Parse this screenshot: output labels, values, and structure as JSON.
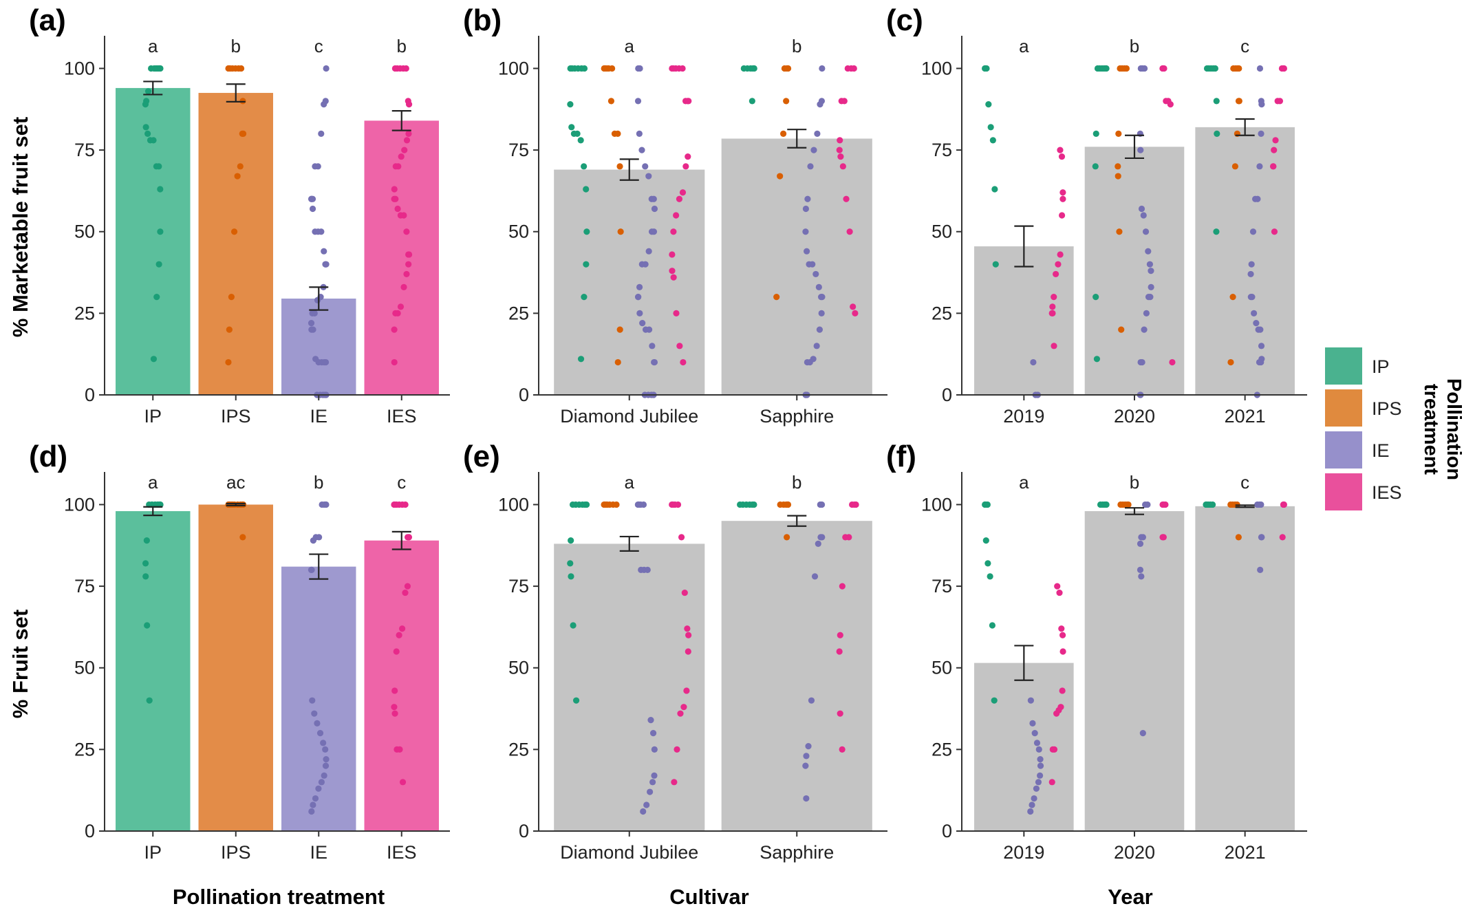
{
  "chart_data": [
    {
      "panel": "(a)",
      "type": "bar",
      "ylabel": "% Marketable fruit set",
      "xlabel": "",
      "ylim": [
        0,
        110
      ],
      "yticks": [
        0,
        25,
        50,
        75,
        100
      ],
      "categories": [
        "IP",
        "IPS",
        "IE",
        "IES"
      ],
      "values": [
        94,
        92.5,
        29.5,
        84
      ],
      "errors": [
        2,
        2.7,
        3.5,
        3
      ],
      "letters": [
        "a",
        "b",
        "c",
        "b"
      ],
      "bar_colors": [
        "#1b9e77",
        "#d95f02",
        "#7570b3",
        "#e7298a"
      ],
      "points": [
        [
          100,
          100,
          100,
          100,
          100,
          100,
          100,
          100,
          93,
          90,
          89,
          82,
          80,
          78,
          78,
          70,
          70,
          63,
          50,
          40,
          30,
          11
        ],
        [
          100,
          100,
          100,
          100,
          100,
          100,
          100,
          100,
          90,
          80,
          80,
          70,
          67,
          50,
          30,
          20,
          10
        ],
        [
          100,
          90,
          89,
          80,
          70,
          70,
          60,
          60,
          60,
          57,
          50,
          50,
          50,
          44,
          40,
          40,
          40,
          33,
          30,
          29,
          25,
          25,
          22,
          20,
          20,
          11,
          10,
          10,
          10,
          10,
          0,
          0,
          0,
          0,
          0
        ],
        [
          100,
          100,
          100,
          100,
          100,
          90,
          89,
          80,
          78,
          75,
          73,
          70,
          70,
          63,
          60,
          60,
          57,
          55,
          55,
          50,
          43,
          43,
          40,
          37,
          33,
          27,
          25,
          25,
          20,
          10
        ]
      ]
    },
    {
      "panel": "(b)",
      "type": "bar",
      "xlabel": "",
      "ylim": [
        0,
        110
      ],
      "yticks": [
        0,
        25,
        50,
        75,
        100
      ],
      "categories": [
        "Diamond Jubilee",
        "Sapphire"
      ],
      "values": [
        69,
        78.5
      ],
      "errors": [
        3.2,
        2.8
      ],
      "letters": [
        "a",
        "b"
      ],
      "group_colors": [
        "#1b9e77",
        "#d95f02",
        "#7570b3",
        "#e7298a"
      ],
      "points": [
        [
          [
            100,
            100,
            100,
            100,
            100,
            100,
            89,
            82,
            80,
            80,
            78,
            70,
            63,
            50,
            40,
            30,
            11
          ],
          [
            100,
            100,
            100,
            100,
            100,
            100,
            100,
            90,
            80,
            80,
            70,
            50,
            20,
            10
          ],
          [
            100,
            100,
            90,
            80,
            75,
            70,
            67,
            60,
            60,
            57,
            50,
            50,
            44,
            40,
            40,
            33,
            30,
            30,
            25,
            22,
            20,
            20,
            15,
            10,
            10,
            0,
            0,
            0,
            0
          ],
          [
            100,
            100,
            100,
            100,
            100,
            90,
            90,
            90,
            73,
            70,
            62,
            60,
            55,
            50,
            43,
            38,
            36,
            25,
            15,
            10
          ]
        ],
        [
          [
            100,
            100,
            100,
            100,
            100,
            100,
            90
          ],
          [
            100,
            100,
            100,
            100,
            90,
            80,
            67,
            30
          ],
          [
            100,
            90,
            89,
            80,
            75,
            70,
            60,
            57,
            50,
            44,
            40,
            40,
            37,
            33,
            30,
            30,
            25,
            20,
            15,
            11,
            10,
            10,
            0,
            0,
            0
          ],
          [
            100,
            100,
            100,
            90,
            90,
            78,
            75,
            73,
            70,
            60,
            50,
            27,
            25
          ]
        ]
      ]
    },
    {
      "panel": "(c)",
      "type": "bar",
      "xlabel": "",
      "ylim": [
        0,
        110
      ],
      "yticks": [
        0,
        25,
        50,
        75,
        100
      ],
      "categories": [
        "2019",
        "2020",
        "2021"
      ],
      "values": [
        45.5,
        76,
        82
      ],
      "errors": [
        6.2,
        3.5,
        2.5
      ],
      "letters": [
        "a",
        "b",
        "c"
      ],
      "group_colors": [
        "#1b9e77",
        "#d95f02",
        "#7570b3",
        "#e7298a"
      ],
      "points": [
        [
          [
            100,
            100,
            100,
            100,
            89,
            82,
            78,
            63,
            40
          ],
          [],
          [
            10,
            0,
            0
          ],
          [
            75,
            73,
            62,
            60,
            55,
            43,
            40,
            37,
            30,
            27,
            25,
            25,
            15
          ]
        ],
        [
          [
            100,
            100,
            100,
            100,
            100,
            100,
            80,
            70,
            30,
            11
          ],
          [
            100,
            100,
            100,
            100,
            80,
            70,
            67,
            50,
            20
          ],
          [
            100,
            100,
            100,
            80,
            75,
            57,
            55,
            50,
            44,
            40,
            38,
            33,
            30,
            30,
            25,
            20,
            10,
            10,
            0,
            0
          ],
          [
            100,
            100,
            100,
            100,
            90,
            90,
            89,
            10
          ]
        ],
        [
          [
            100,
            100,
            100,
            100,
            100,
            90,
            80,
            50
          ],
          [
            100,
            100,
            100,
            100,
            90,
            90,
            80,
            70,
            30,
            10
          ],
          [
            100,
            90,
            89,
            80,
            70,
            60,
            60,
            50,
            40,
            37,
            30,
            30,
            25,
            22,
            20,
            20,
            15,
            11,
            10,
            10,
            0
          ],
          [
            100,
            100,
            100,
            90,
            90,
            78,
            75,
            70,
            70,
            50
          ]
        ]
      ]
    },
    {
      "panel": "(d)",
      "type": "bar",
      "ylabel": "% Fruit set",
      "xlabel": "Pollination treatment",
      "ylim": [
        0,
        110
      ],
      "yticks": [
        0,
        25,
        50,
        75,
        100
      ],
      "categories": [
        "IP",
        "IPS",
        "IE",
        "IES"
      ],
      "values": [
        98,
        100,
        81,
        89
      ],
      "errors": [
        1.3,
        0.3,
        3.8,
        2.7
      ],
      "letters": [
        "a",
        "ac",
        "b",
        "c"
      ],
      "bar_colors": [
        "#1b9e77",
        "#d95f02",
        "#7570b3",
        "#e7298a"
      ],
      "points": [
        [
          100,
          100,
          100,
          100,
          100,
          100,
          100,
          100,
          100,
          100,
          89,
          82,
          78,
          63,
          40
        ],
        [
          100,
          100,
          100,
          100,
          100,
          100,
          100,
          100,
          100,
          100,
          100,
          90
        ],
        [
          100,
          100,
          100,
          100,
          100,
          90,
          90,
          89,
          80,
          80,
          40,
          36,
          33,
          30,
          27,
          25,
          22,
          20,
          17,
          15,
          13,
          10,
          8,
          6
        ],
        [
          100,
          100,
          100,
          100,
          100,
          100,
          90,
          90,
          90,
          75,
          73,
          62,
          60,
          55,
          43,
          38,
          36,
          25,
          25,
          15
        ]
      ]
    },
    {
      "panel": "(e)",
      "type": "bar",
      "xlabel": "Cultivar",
      "ylim": [
        0,
        110
      ],
      "yticks": [
        0,
        25,
        50,
        75,
        100
      ],
      "categories": [
        "Diamond Jubilee",
        "Sapphire"
      ],
      "values": [
        88,
        95
      ],
      "errors": [
        2.2,
        1.6
      ],
      "letters": [
        "a",
        "b"
      ],
      "group_colors": [
        "#1b9e77",
        "#d95f02",
        "#7570b3",
        "#e7298a"
      ],
      "points": [
        [
          [
            100,
            100,
            100,
            100,
            100,
            100,
            89,
            82,
            78,
            63,
            40
          ],
          [
            100,
            100,
            100,
            100,
            100,
            100,
            100,
            100
          ],
          [
            100,
            100,
            100,
            100,
            100,
            80,
            80,
            80,
            34,
            30,
            25,
            17,
            15,
            12,
            8,
            6
          ],
          [
            100,
            100,
            100,
            100,
            100,
            90,
            73,
            62,
            60,
            55,
            43,
            38,
            36,
            25,
            15
          ]
        ],
        [
          [
            100,
            100,
            100,
            100,
            100,
            100
          ],
          [
            100,
            100,
            100,
            100,
            100,
            90
          ],
          [
            100,
            100,
            90,
            90,
            88,
            78,
            40,
            26,
            23,
            20,
            10
          ],
          [
            100,
            100,
            100,
            90,
            90,
            75,
            60,
            55,
            36,
            25
          ]
        ]
      ]
    },
    {
      "panel": "(f)",
      "type": "bar",
      "xlabel": "Year",
      "ylim": [
        0,
        110
      ],
      "yticks": [
        0,
        25,
        50,
        75,
        100
      ],
      "categories": [
        "2019",
        "2020",
        "2021"
      ],
      "values": [
        51.5,
        98,
        99.5
      ],
      "errors": [
        5.3,
        1.0,
        0.3
      ],
      "letters": [
        "a",
        "b",
        "c"
      ],
      "group_colors": [
        "#1b9e77",
        "#d95f02",
        "#7570b3",
        "#e7298a"
      ],
      "points": [
        [
          [
            100,
            100,
            100,
            100,
            89,
            82,
            78,
            63,
            40
          ],
          [],
          [
            40,
            33,
            30,
            27,
            25,
            22,
            20,
            17,
            15,
            13,
            10,
            8,
            6
          ],
          [
            75,
            73,
            62,
            60,
            55,
            43,
            38,
            37,
            36,
            25,
            25,
            15
          ]
        ],
        [
          [
            100,
            100,
            100,
            100,
            100,
            100
          ],
          [
            100,
            100,
            100,
            100,
            100
          ],
          [
            100,
            100,
            90,
            90,
            88,
            80,
            78,
            30
          ],
          [
            100,
            100,
            100,
            90,
            90
          ]
        ],
        [
          [
            100,
            100,
            100,
            100,
            100
          ],
          [
            100,
            100,
            100,
            100,
            90
          ],
          [
            100,
            100,
            100,
            90,
            90,
            80
          ],
          [
            100,
            100,
            100,
            90
          ]
        ]
      ]
    }
  ],
  "legend": {
    "title_line1": "Pollination",
    "title_line2": "treatment",
    "items": [
      {
        "label": "IP",
        "color": "#4ab28f"
      },
      {
        "label": "IPS",
        "color": "#e08a3e"
      },
      {
        "label": "IE",
        "color": "#9690cb"
      },
      {
        "label": "IES",
        "color": "#e9509c"
      }
    ]
  },
  "colors": {
    "bar_fills": [
      "#5bbf9c",
      "#e38c48",
      "#9e99cf",
      "#ee64a8"
    ],
    "grey_bar": "#c4c4c4",
    "point_colors": [
      "#1b9e77",
      "#d95f02",
      "#7570b3",
      "#e7298a"
    ]
  }
}
